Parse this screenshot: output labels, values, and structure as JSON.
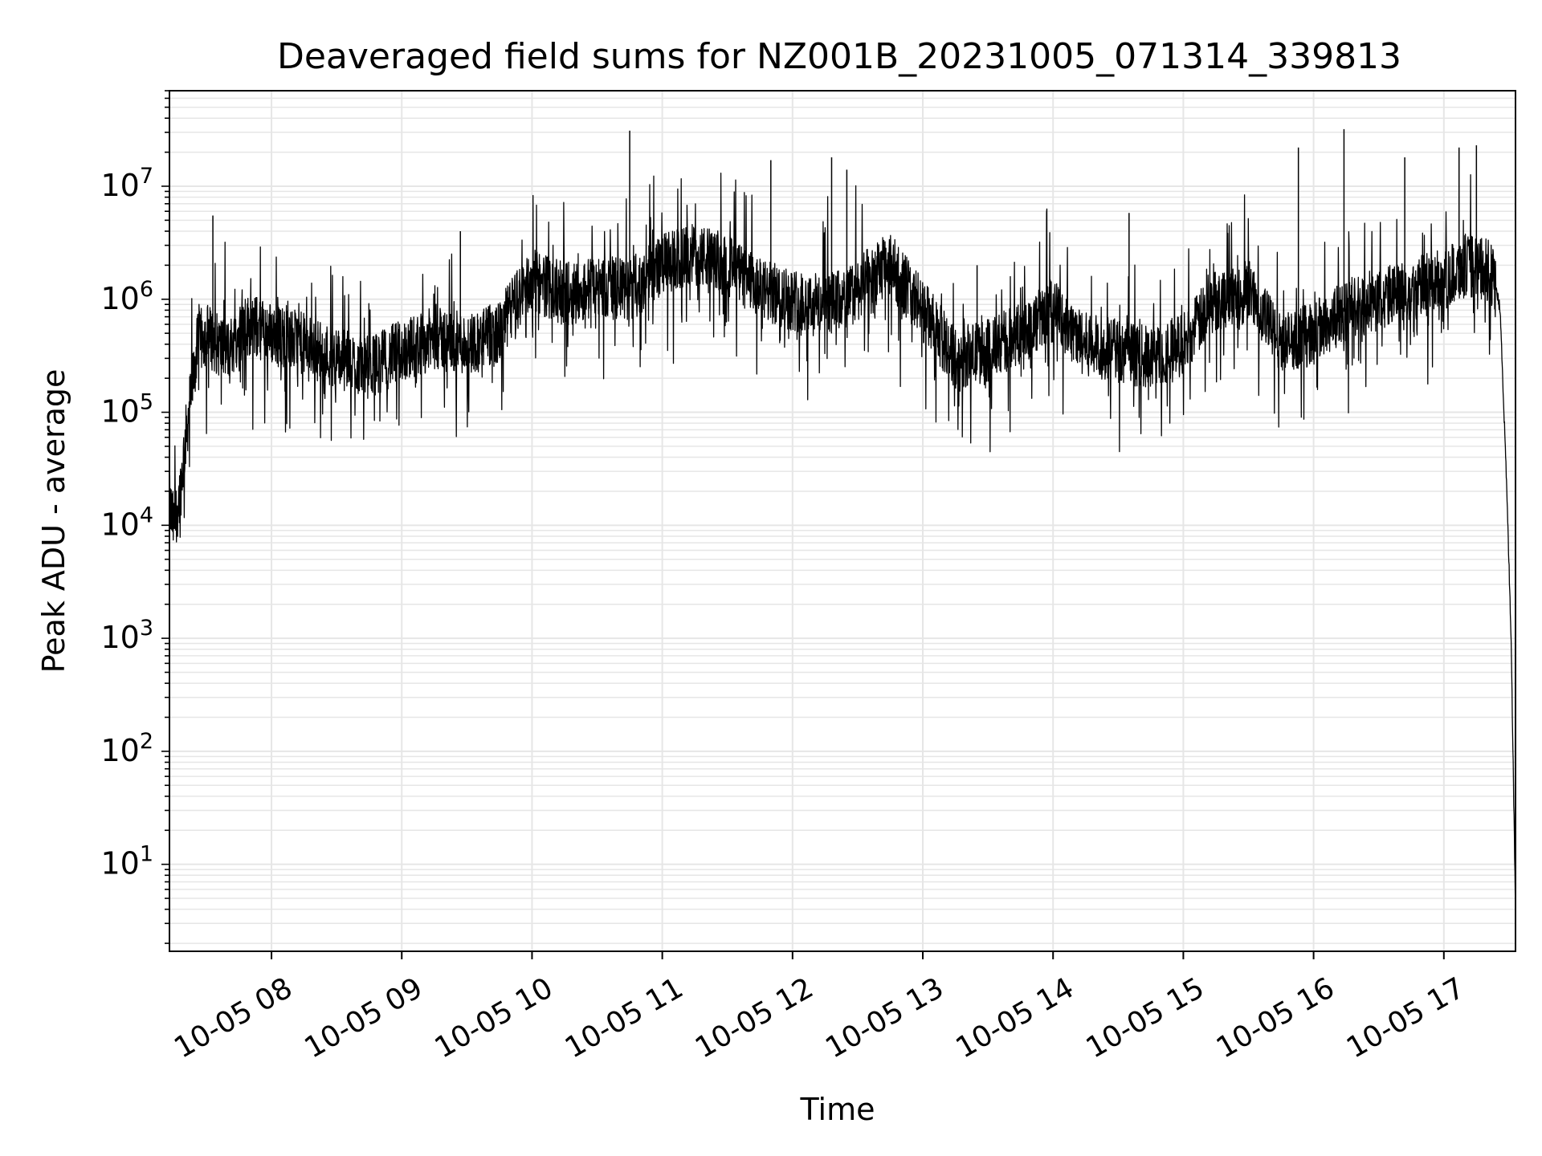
{
  "chart_data": {
    "type": "line",
    "title": "Deaveraged field sums for NZ001B_20231005_071314_339813",
    "xlabel": "Time",
    "ylabel": "Peak ADU - average",
    "y_scale": "log",
    "ylim": [
      1.7,
      70000000
    ],
    "xlim": [
      "2023-10-05T07:13:00",
      "2023-10-05T17:33:00"
    ],
    "x_ticks": [
      "2023-10-05T08:00:00",
      "2023-10-05T09:00:00",
      "2023-10-05T10:00:00",
      "2023-10-05T11:00:00",
      "2023-10-05T12:00:00",
      "2023-10-05T13:00:00",
      "2023-10-05T14:00:00",
      "2023-10-05T15:00:00",
      "2023-10-05T16:00:00",
      "2023-10-05T17:00:00"
    ],
    "x_tick_labels": [
      "10-05 08",
      "10-05 09",
      "10-05 10",
      "10-05 11",
      "10-05 12",
      "10-05 13",
      "10-05 14",
      "10-05 15",
      "10-05 16",
      "10-05 17"
    ],
    "y_ticks": [
      10,
      100,
      1000,
      10000,
      100000,
      1000000,
      10000000
    ],
    "y_tick_labels": [
      {
        "base": "10",
        "exp": "1"
      },
      {
        "base": "10",
        "exp": "2"
      },
      {
        "base": "10",
        "exp": "3"
      },
      {
        "base": "10",
        "exp": "4"
      },
      {
        "base": "10",
        "exp": "5"
      },
      {
        "base": "10",
        "exp": "6"
      },
      {
        "base": "10",
        "exp": "7"
      }
    ],
    "grid": true,
    "line_color": "#000000",
    "grid_color": "#e6e6e6",
    "series": [
      {
        "x": [
          "2023-10-05T07:13:00",
          "2023-10-05T07:15:00",
          "2023-10-05T07:18:00",
          "2023-10-05T07:20:00",
          "2023-10-05T07:23:00",
          "2023-10-05T07:26:00",
          "2023-10-05T07:30:00",
          "2023-10-05T07:35:00",
          "2023-10-05T07:40:00",
          "2023-10-05T07:45:00",
          "2023-10-05T07:50:00",
          "2023-10-05T08:00:00",
          "2023-10-05T08:15:00",
          "2023-10-05T08:30:00",
          "2023-10-05T08:45:00",
          "2023-10-05T09:00:00",
          "2023-10-05T09:15:00",
          "2023-10-05T09:30:00",
          "2023-10-05T09:45:00",
          "2023-10-05T09:50:00",
          "2023-10-05T10:00:00",
          "2023-10-05T10:15:00",
          "2023-10-05T10:30:00",
          "2023-10-05T10:45:00",
          "2023-10-05T11:00:00",
          "2023-10-05T11:15:00",
          "2023-10-05T11:30:00",
          "2023-10-05T11:45:00",
          "2023-10-05T12:00:00",
          "2023-10-05T12:15:00",
          "2023-10-05T12:25:00",
          "2023-10-05T12:35:00",
          "2023-10-05T12:45:00",
          "2023-10-05T12:50:00",
          "2023-10-05T13:00:00",
          "2023-10-05T13:15:00",
          "2023-10-05T13:30:00",
          "2023-10-05T13:45:00",
          "2023-10-05T14:00:00",
          "2023-10-05T14:15:00",
          "2023-10-05T14:30:00",
          "2023-10-05T14:45:00",
          "2023-10-05T15:00:00",
          "2023-10-05T15:15:00",
          "2023-10-05T15:30:00",
          "2023-10-05T15:45:00",
          "2023-10-05T16:00:00",
          "2023-10-05T16:15:00",
          "2023-10-05T16:30:00",
          "2023-10-05T16:45:00",
          "2023-10-05T17:00:00",
          "2023-10-05T17:10:00",
          "2023-10-05T17:20:00",
          "2023-10-05T17:23:00",
          "2023-10-05T17:26:00",
          "2023-10-05T17:29:00",
          "2023-10-05T17:31:00",
          "2023-10-05T17:33:00"
        ],
        "y": [
          15000,
          10000,
          20000,
          50000,
          150000,
          400000,
          500000,
          400000,
          350000,
          500000,
          600000,
          500000,
          400000,
          300000,
          250000,
          350000,
          450000,
          400000,
          500000,
          800000,
          1500000,
          1100000,
          1300000,
          1200000,
          2000000,
          2500000,
          2000000,
          1200000,
          1000000,
          900000,
          1000000,
          1500000,
          2000000,
          1500000,
          800000,
          300000,
          350000,
          500000,
          800000,
          400000,
          350000,
          300000,
          400000,
          1000000,
          1200000,
          400000,
          500000,
          800000,
          1000000,
          1200000,
          1500000,
          2000000,
          1800000,
          1500000,
          800000,
          20000,
          1000,
          4
        ]
      }
    ],
    "spikes": [
      {
        "x": "2023-10-05T10:45:00",
        "y": 31000000
      },
      {
        "x": "2023-10-05T11:50:00",
        "y": 17000000
      },
      {
        "x": "2023-10-05T12:18:00",
        "y": 18000000
      },
      {
        "x": "2023-10-05T12:25:00",
        "y": 14000000
      },
      {
        "x": "2023-10-05T15:53:00",
        "y": 22000000
      },
      {
        "x": "2023-10-05T16:14:00",
        "y": 32000000
      },
      {
        "x": "2023-10-05T16:42:00",
        "y": 18000000
      },
      {
        "x": "2023-10-05T17:07:00",
        "y": 22000000
      },
      {
        "x": "2023-10-05T17:15:00",
        "y": 23000000
      },
      {
        "x": "2023-10-05T07:33:00",
        "y": 5500000
      },
      {
        "x": "2023-10-05T09:27:00",
        "y": 4000000
      },
      {
        "x": "2023-10-05T13:25:00",
        "y": 2000000
      },
      {
        "x": "2023-10-05T14:35:00",
        "y": 5800000
      }
    ]
  }
}
